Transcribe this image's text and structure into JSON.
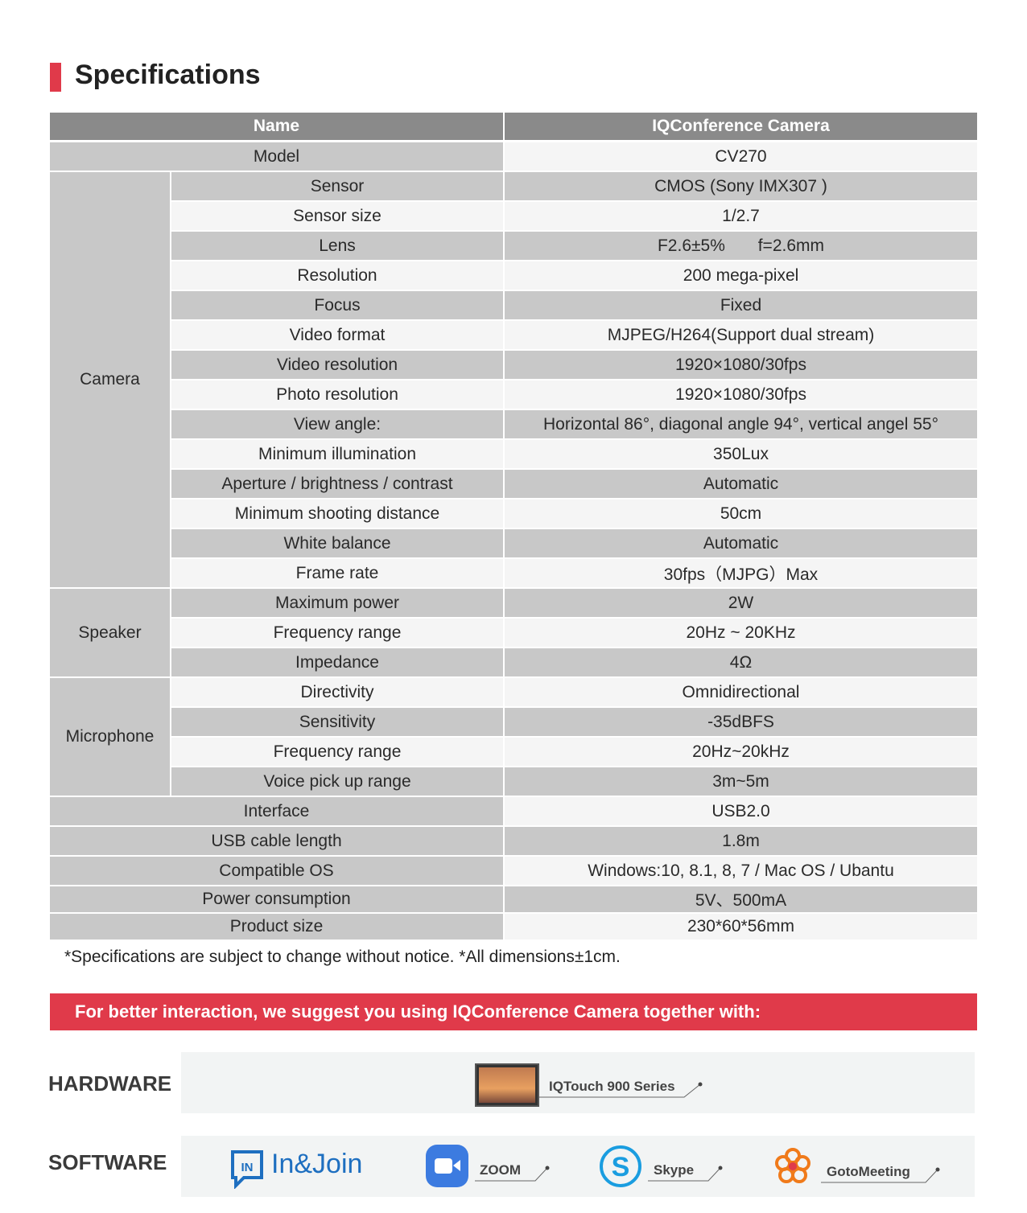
{
  "header": {
    "title": "Specifications"
  },
  "table": {
    "columns": [
      "Name",
      "IQConference Camera"
    ],
    "rows": [
      {
        "name": "Model",
        "value": "CV270"
      },
      {
        "group": "Camera",
        "items": [
          {
            "name": "Sensor",
            "value": "CMOS (Sony IMX307 )"
          },
          {
            "name": "Sensor size",
            "value": "1/2.7"
          },
          {
            "name": "Lens",
            "value": "F2.6±5%       f=2.6mm"
          },
          {
            "name": "Resolution",
            "value": "200 mega-pixel"
          },
          {
            "name": "Focus",
            "value": "Fixed"
          },
          {
            "name": "Video format",
            "value": "MJPEG/H264(Support dual stream)"
          },
          {
            "name": "Video resolution",
            "value": "1920×1080/30fps"
          },
          {
            "name": "Photo resolution",
            "value": "1920×1080/30fps"
          },
          {
            "name": "View angle:",
            "value": "Horizontal 86°, diagonal angle 94°, vertical angel 55°"
          },
          {
            "name": "Minimum illumination",
            "value": "350Lux"
          },
          {
            "name": "Aperture / brightness / contrast",
            "value": "Automatic"
          },
          {
            "name": "Minimum shooting distance",
            "value": "50cm"
          },
          {
            "name": "White balance",
            "value": "Automatic"
          },
          {
            "name": "Frame rate",
            "value": "30fps（MJPG）Max"
          }
        ]
      },
      {
        "group": "Speaker",
        "items": [
          {
            "name": "Maximum power",
            "value": "2W"
          },
          {
            "name": "Frequency range",
            "value": "20Hz ~ 20KHz"
          },
          {
            "name": "Impedance",
            "value": "4Ω"
          }
        ]
      },
      {
        "group": "Microphone",
        "items": [
          {
            "name": "Directivity",
            "value": "Omnidirectional"
          },
          {
            "name": "Sensitivity",
            "value": "-35dBFS"
          },
          {
            "name": "Frequency range",
            "value": "20Hz~20kHz"
          },
          {
            "name": "Voice pick up range",
            "value": "3m~5m"
          }
        ]
      },
      {
        "name": "Interface",
        "value": "USB2.0"
      },
      {
        "name": "USB cable length",
        "value": "1.8m"
      },
      {
        "name": "Compatible OS",
        "value": "Windows:10, 8.1, 8, 7 / Mac OS / Ubantu"
      },
      {
        "name": "Power consumption",
        "value": "5V、500mA"
      },
      {
        "name": "Product size",
        "value": "230*60*56mm"
      }
    ]
  },
  "footnote": "*Specifications are subject to change without notice. *All dimensions±1cm.",
  "banner": "For better interaction, we suggest you using IQConference Camera together with:",
  "hardware": {
    "label": "HARDWARE",
    "items": [
      "IQTouch 900 Series"
    ]
  },
  "software": {
    "label": "SOFTWARE",
    "items": [
      "In&Join",
      "ZOOM",
      "Skype",
      "GotoMeeting"
    ]
  }
}
